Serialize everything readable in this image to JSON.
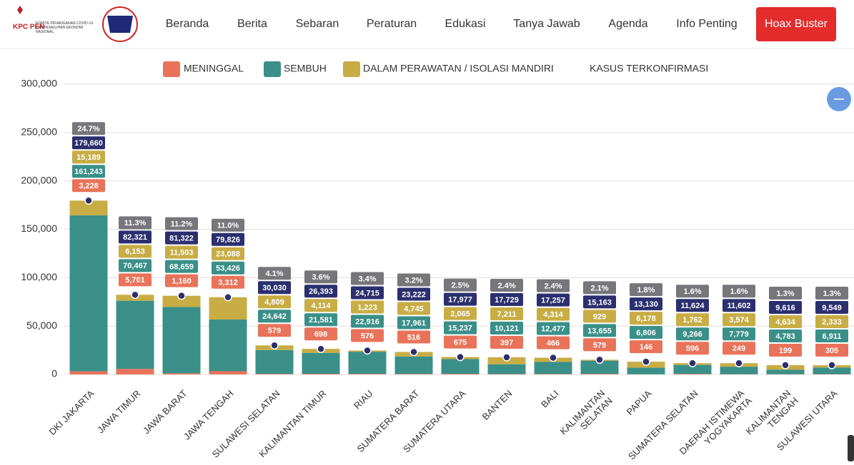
{
  "logo": {
    "mark": "KPC PEN",
    "text": "KOMITE PENANGANAN COVID-19 DAN PEMULIHAN EKONOMI NASIONAL"
  },
  "nav": {
    "items": [
      "Beranda",
      "Berita",
      "Sebaran",
      "Peraturan",
      "Edukasi",
      "Tanya Jawab",
      "Agenda",
      "Info Penting"
    ],
    "button": "Hoax Buster"
  },
  "chart_data": {
    "type": "bar",
    "categories": [
      "DKI JAKARTA",
      "JAWA TIMUR",
      "JAWA BARAT",
      "JAWA TENGAH",
      "SULAWESI SELATAN",
      "KALIMANTAN TIMUR",
      "RIAU",
      "SUMATERA BARAT",
      "SUMATERA UTARA",
      "BANTEN",
      "BALI",
      "KALIMANTAN\nSELATAN",
      "PAPUA",
      "SUMATERA SELATAN",
      "DAERAH ISTIMEWA\nYOGYAKARTA",
      "KALIMANTAN\nTENGAH",
      "SULAWESI UTARA"
    ],
    "ylim": [
      0,
      300000
    ],
    "yticks": [
      {
        "value": 0,
        "label": "0"
      },
      {
        "value": 50000,
        "label": "50,000"
      },
      {
        "value": 100000,
        "label": "100,000"
      },
      {
        "value": 150000,
        "label": "150,000"
      },
      {
        "value": 200000,
        "label": "200,000"
      },
      {
        "value": 250000,
        "label": "250,000"
      },
      {
        "value": 300000,
        "label": "300,000"
      }
    ],
    "grid": true,
    "series": [
      {
        "name": "MENINGGAL",
        "color": "#e8735a",
        "stacked": true,
        "values": [
          3228,
          5701,
          1160,
          3312,
          579,
          698,
          576,
          516,
          675,
          397,
          466,
          579,
          146,
          596,
          249,
          199,
          305
        ],
        "value_labels": [
          "3,228",
          "5,701",
          "1,160",
          "3,312",
          "579",
          "698",
          "576",
          "516",
          "675",
          "397",
          "466",
          "579",
          "146",
          "596",
          "249",
          "199",
          "305"
        ]
      },
      {
        "name": "SEMBUH",
        "color": "#3a9088",
        "stacked": true,
        "values": [
          161243,
          70467,
          68659,
          53426,
          24642,
          21581,
          22916,
          17961,
          15237,
          10121,
          12477,
          13655,
          6806,
          9266,
          7779,
          4783,
          6911
        ],
        "value_labels": [
          "161,243",
          "70,467",
          "68,659",
          "53,426",
          "24,642",
          "21,581",
          "22,916",
          "17,961",
          "15,237",
          "10,121",
          "12,477",
          "13,655",
          "6,806",
          "9,266",
          "7,779",
          "4,783",
          "6,911"
        ]
      },
      {
        "name": "DALAM PERAWATAN / ISOLASI MANDIRI",
        "color": "#c8ad45",
        "stacked": true,
        "values": [
          15189,
          6153,
          11503,
          23088,
          4809,
          4114,
          1223,
          4745,
          2065,
          7211,
          4314,
          929,
          6178,
          1762,
          3574,
          4634,
          2333
        ],
        "value_labels": [
          "15,189",
          "6,153",
          "11,503",
          "23,088",
          "4,809",
          "4,114",
          "1,223",
          "4,745",
          "2,065",
          "7,211",
          "4,314",
          "929",
          "6,178",
          "1,762",
          "3,574",
          "4,634",
          "2,333"
        ]
      },
      {
        "name": "KASUS TERKONFIRMASI",
        "color": "#2b2f6e",
        "stacked": false,
        "values": [
          179660,
          82321,
          81322,
          79826,
          30030,
          26393,
          24715,
          23222,
          17977,
          17729,
          17257,
          15163,
          13130,
          11624,
          11602,
          9616,
          9549
        ],
        "value_labels": [
          "179,660",
          "82,321",
          "81,322",
          "79,826",
          "30,030",
          "26,393",
          "24,715",
          "23,222",
          "17,977",
          "17,729",
          "17,257",
          "15,163",
          "13,130",
          "11,624",
          "11,602",
          "9,616",
          "9,549"
        ]
      }
    ],
    "shares": {
      "color": "#77777b",
      "values": [
        24.7,
        11.3,
        11.2,
        11.0,
        4.1,
        3.6,
        3.4,
        3.2,
        2.5,
        2.4,
        2.4,
        2.1,
        1.8,
        1.6,
        1.6,
        1.3,
        1.3
      ],
      "value_labels": [
        "24.7%",
        "11.3%",
        "11.2%",
        "11.0%",
        "4.1%",
        "3.6%",
        "3.4%",
        "3.2%",
        "2.5%",
        "2.4%",
        "2.4%",
        "2.1%",
        "1.8%",
        "1.6%",
        "1.6%",
        "1.3%",
        "1.3%"
      ]
    }
  }
}
